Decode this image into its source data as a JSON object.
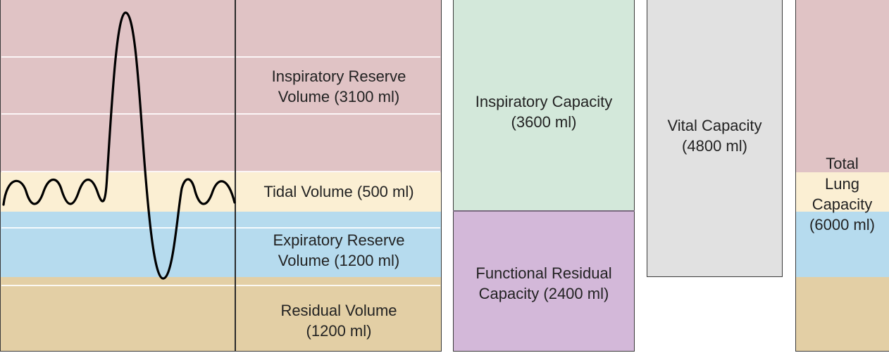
{
  "colors": {
    "inspiratory_reserve": "#e0c3c5",
    "tidal": "#fbefd3",
    "expiratory_reserve": "#b6dbee",
    "residual": "#e3cfa5",
    "inspiratory_capacity": "#d3e8da",
    "functional_residual": "#d3b8d9",
    "vital_capacity": "#e1e1e1",
    "outline": "#3a3a3a",
    "trace": "#000000"
  },
  "volumes": {
    "inspiratory_reserve": {
      "label": "Inspiratory Reserve\nVolume (3100 ml)",
      "ml": 3100
    },
    "tidal": {
      "label": "Tidal Volume (500 ml)",
      "ml": 500
    },
    "expiratory_reserve": {
      "label": "Expiratory Reserve\nVolume (1200 ml)",
      "ml": 1200
    },
    "residual": {
      "label": "Residual Volume\n(1200 ml)",
      "ml": 1200
    }
  },
  "capacities": {
    "inspiratory": {
      "label": "Inspiratory Capacity\n(3600 ml)",
      "ml": 3600
    },
    "functional_residual": {
      "label": "Functional Residual\nCapacity (2400 ml)",
      "ml": 2400
    },
    "vital": {
      "label": "Vital Capacity\n(4800 ml)",
      "ml": 4800
    },
    "total_lung": {
      "label": "Total\nLung\nCapacity\n(6000 ml)",
      "ml": 6000
    }
  }
}
